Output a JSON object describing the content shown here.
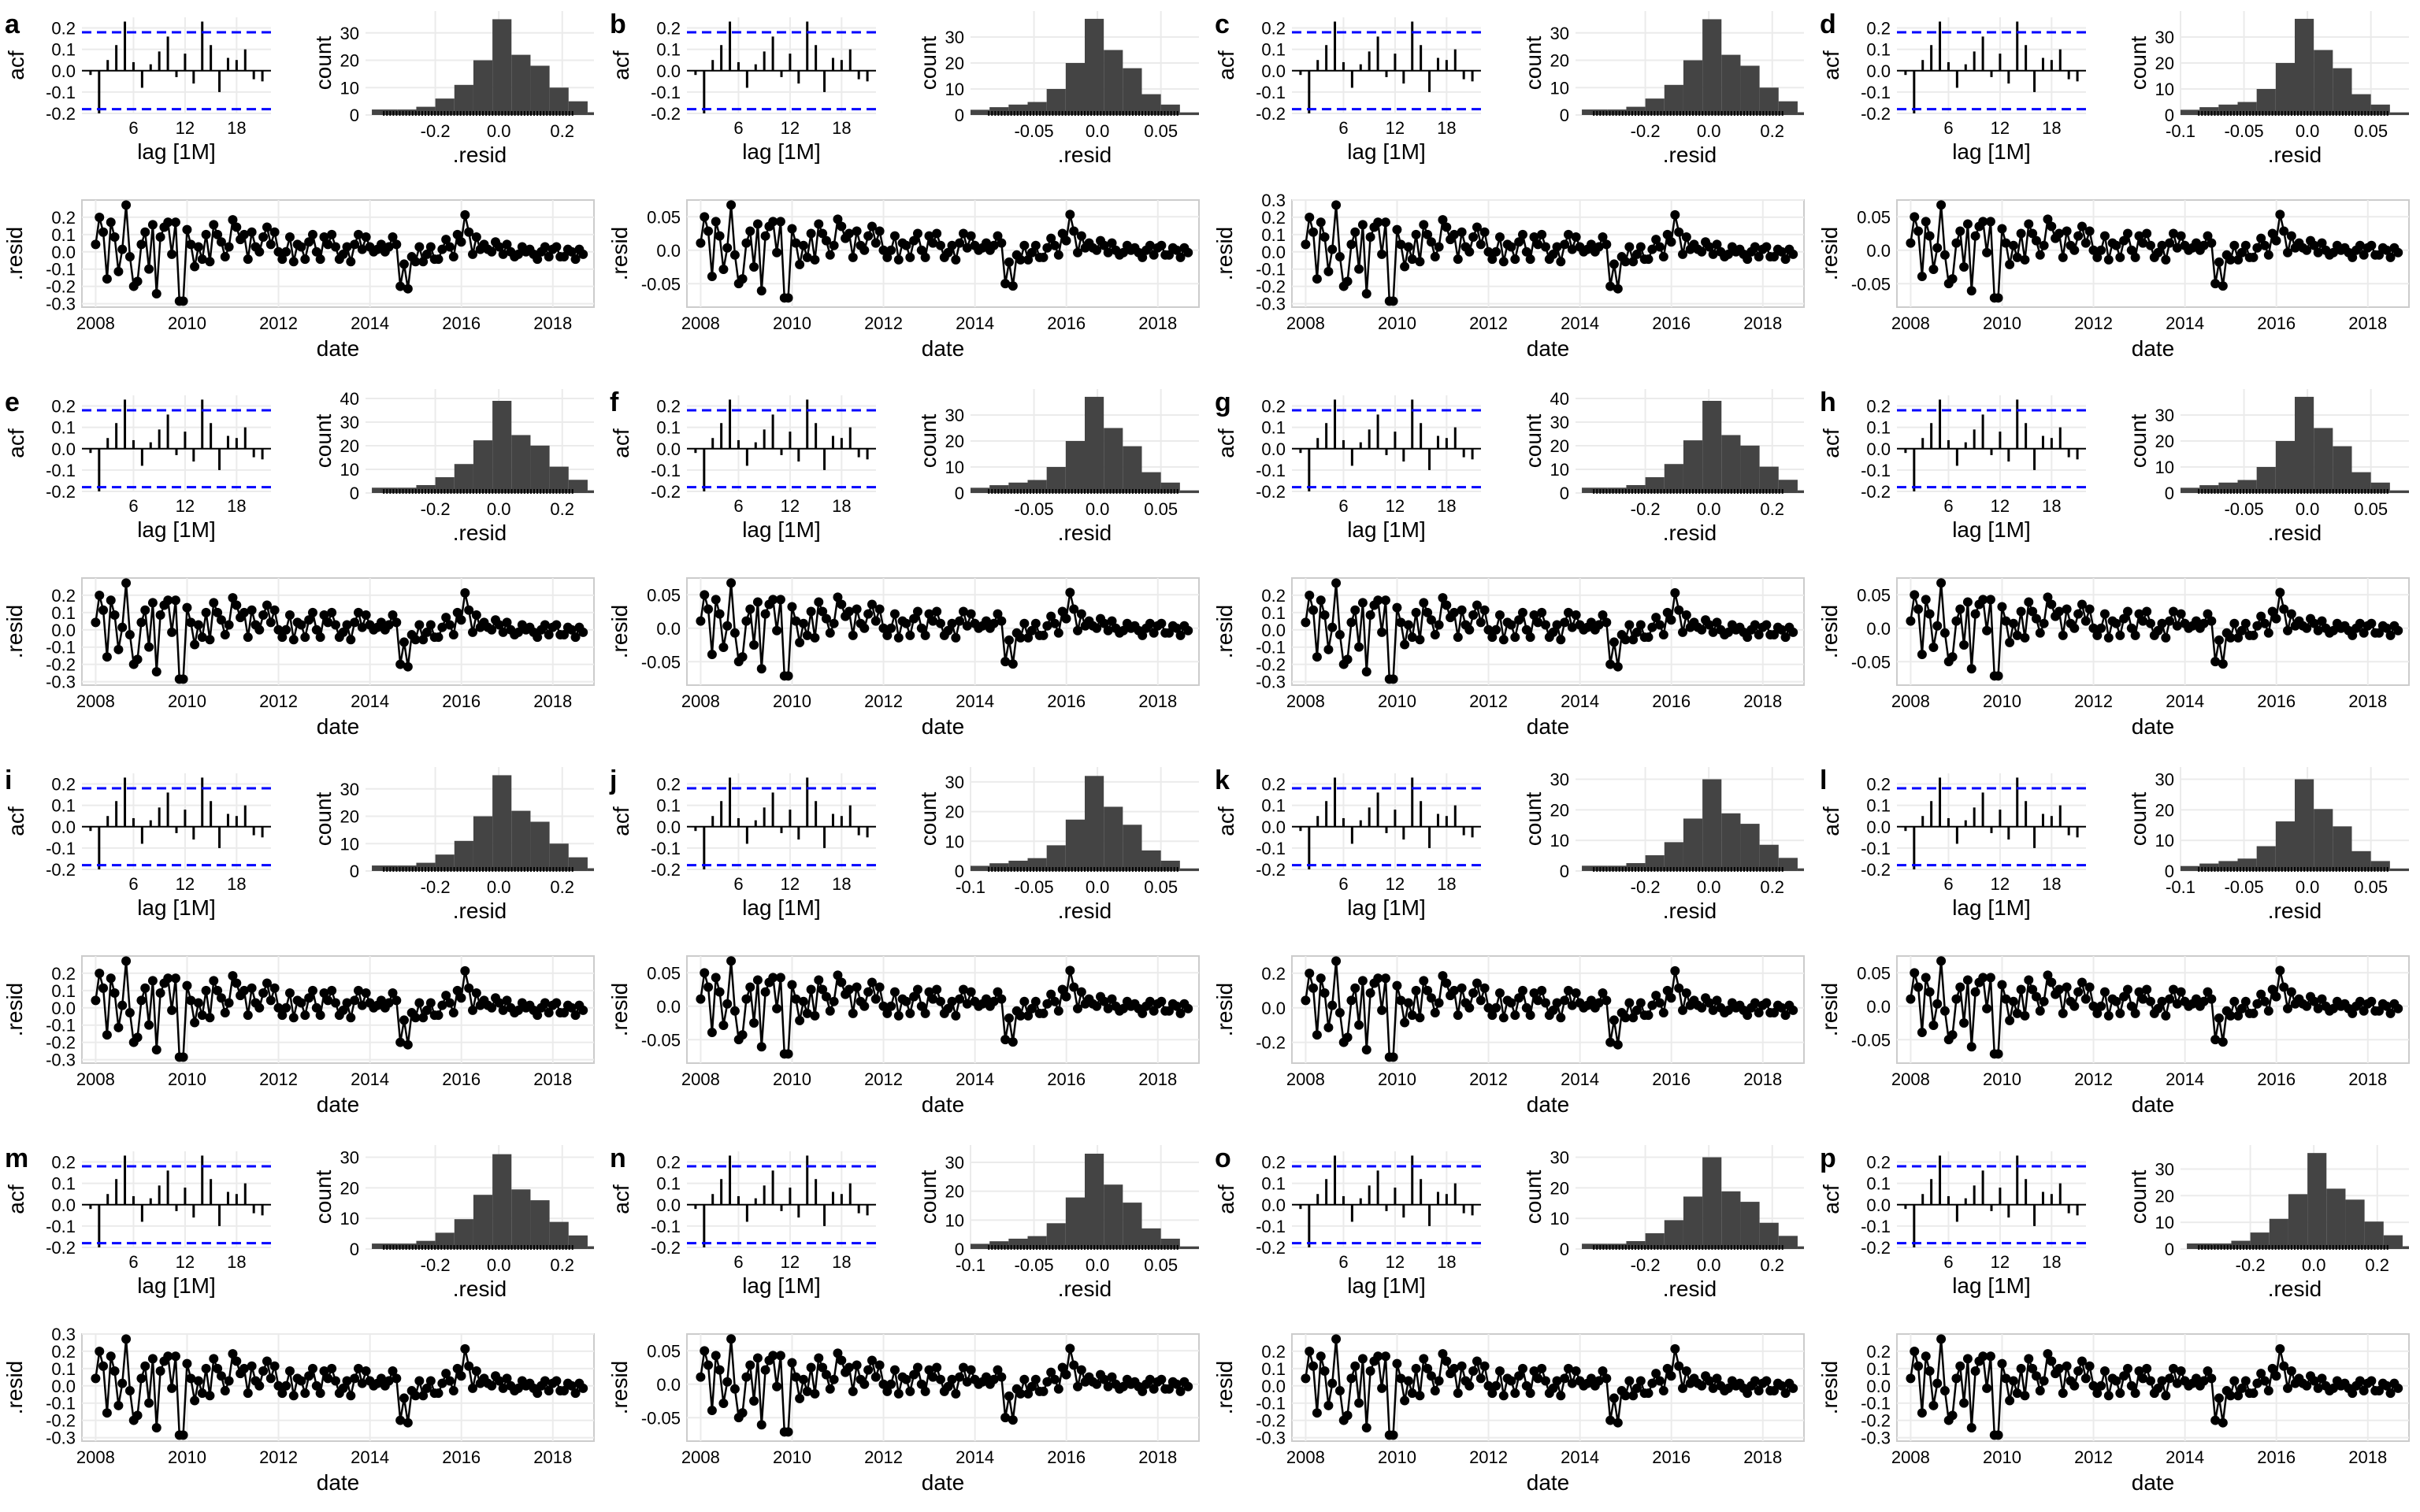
{
  "figure": {
    "panel_letters": [
      "a",
      "b",
      "c",
      "d",
      "e",
      "f",
      "g",
      "h",
      "i",
      "j",
      "k",
      "l",
      "m",
      "n",
      "o",
      "p"
    ],
    "acf_ylabel": "acf",
    "acf_xlabel": "lag [1M]",
    "hist_ylabel": "count",
    "hist_xlabel": ".resid",
    "ts_ylabel": ".resid",
    "ts_xlabel": "date",
    "acf_line_color": "#0000ff",
    "bar_color": "#444444",
    "point_color": "#000000",
    "grid_color": "#ebebeb"
  },
  "chart_data": {
    "type": "composite",
    "description_note": "",
    "acf": {
      "xlim": [
        0,
        22
      ],
      "ylim": [
        -0.2,
        0.25
      ],
      "xticks": [
        6,
        12,
        18
      ],
      "yticks": [
        -0.2,
        -0.1,
        0.0,
        0.1,
        0.2
      ],
      "conf_band": 0.18,
      "lags": [
        1,
        2,
        3,
        4,
        5,
        6,
        7,
        8,
        9,
        10,
        11,
        12,
        13,
        14,
        15,
        16,
        17,
        18,
        19,
        20,
        21
      ],
      "values": [
        -0.02,
        -0.2,
        0.05,
        0.12,
        0.23,
        0.04,
        -0.08,
        0.03,
        0.09,
        0.16,
        -0.03,
        0.08,
        -0.06,
        0.23,
        0.12,
        -0.1,
        0.06,
        0.05,
        0.1,
        -0.04,
        -0.05
      ]
    },
    "histogram_scales": {
      "large": {
        "xlim": [
          -0.42,
          0.3
        ],
        "xticks": [
          -0.2,
          0.0,
          0.2
        ],
        "bins": [
          -0.4,
          -0.32,
          -0.26,
          -0.2,
          -0.14,
          -0.08,
          -0.02,
          0.04,
          0.1,
          0.16,
          0.22,
          0.28
        ]
      },
      "small": {
        "xlim": [
          -0.1,
          0.08
        ],
        "xticks": [
          -0.05,
          0.0,
          0.05
        ],
        "bins": [
          -0.1,
          -0.085,
          -0.07,
          -0.055,
          -0.04,
          -0.025,
          -0.01,
          0.005,
          0.02,
          0.035,
          0.05,
          0.065,
          0.08
        ]
      }
    },
    "histogram_counts": {
      "large": [
        2,
        2,
        3,
        6,
        11,
        20,
        35,
        22,
        18,
        10,
        5,
        1
      ],
      "small": [
        2,
        3,
        4,
        5,
        10,
        20,
        37,
        25,
        18,
        8,
        4,
        1
      ]
    },
    "panels": [
      {
        "letter": "a",
        "scale": "large",
        "hist_ymax": 35,
        "hist_yticks": [
          0,
          10,
          20,
          30
        ],
        "ts_yticks": [
          -0.3,
          -0.2,
          -0.1,
          0.0,
          0.1,
          0.2
        ],
        "ts_ylim": [
          -0.32,
          0.3
        ]
      },
      {
        "letter": "b",
        "scale": "small",
        "hist_ymax": 37,
        "hist_yticks": [
          0,
          10,
          20,
          30
        ],
        "ts_yticks": [
          -0.05,
          0.0,
          0.05
        ],
        "ts_ylim": [
          -0.085,
          0.075
        ]
      },
      {
        "letter": "c",
        "scale": "large",
        "hist_ymax": 35,
        "hist_yticks": [
          0,
          10,
          20,
          30
        ],
        "ts_yticks": [
          -0.3,
          -0.2,
          -0.1,
          0.0,
          0.1,
          0.2,
          0.3
        ],
        "ts_ylim": [
          -0.32,
          0.3
        ]
      },
      {
        "letter": "d",
        "scale": "small",
        "hist_ymax": 37,
        "hist_yticks": [
          0,
          10,
          20,
          30
        ],
        "ts_yticks": [
          -0.05,
          0.0,
          0.05
        ],
        "ts_ylim": [
          -0.085,
          0.075
        ],
        "hist_xticks": [
          -0.1,
          -0.05,
          0.0,
          0.05
        ]
      },
      {
        "letter": "e",
        "scale": "large",
        "hist_ymax": 39,
        "hist_yticks": [
          0,
          10,
          20,
          30,
          40
        ],
        "ts_yticks": [
          -0.3,
          -0.2,
          -0.1,
          0.0,
          0.1,
          0.2
        ],
        "ts_ylim": [
          -0.32,
          0.3
        ]
      },
      {
        "letter": "f",
        "scale": "small",
        "hist_ymax": 37,
        "hist_yticks": [
          0,
          10,
          20,
          30
        ],
        "ts_yticks": [
          -0.05,
          0.0,
          0.05
        ],
        "ts_ylim": [
          -0.085,
          0.075
        ]
      },
      {
        "letter": "g",
        "scale": "large",
        "hist_ymax": 39,
        "hist_yticks": [
          0,
          10,
          20,
          30,
          40
        ],
        "ts_yticks": [
          -0.3,
          -0.2,
          -0.1,
          0.0,
          0.1,
          0.2
        ],
        "ts_ylim": [
          -0.32,
          0.3
        ]
      },
      {
        "letter": "h",
        "scale": "small",
        "hist_ymax": 37,
        "hist_yticks": [
          0,
          10,
          20,
          30
        ],
        "ts_yticks": [
          -0.05,
          0.0,
          0.05
        ],
        "ts_ylim": [
          -0.085,
          0.075
        ]
      },
      {
        "letter": "i",
        "scale": "large",
        "hist_ymax": 35,
        "hist_yticks": [
          0,
          10,
          20,
          30
        ],
        "ts_yticks": [
          -0.3,
          -0.2,
          -0.1,
          0.0,
          0.1,
          0.2
        ],
        "ts_ylim": [
          -0.32,
          0.3
        ]
      },
      {
        "letter": "j",
        "scale": "small",
        "hist_ymax": 32,
        "hist_yticks": [
          0,
          10,
          20,
          30
        ],
        "ts_yticks": [
          -0.05,
          0.0,
          0.05
        ],
        "ts_ylim": [
          -0.085,
          0.075
        ],
        "hist_xticks": [
          -0.1,
          -0.05,
          0.0,
          0.05
        ]
      },
      {
        "letter": "k",
        "scale": "large",
        "hist_ymax": 30,
        "hist_yticks": [
          0,
          10,
          20,
          30
        ],
        "ts_yticks": [
          -0.2,
          0.0,
          0.2
        ],
        "ts_ylim": [
          -0.32,
          0.3
        ]
      },
      {
        "letter": "l",
        "scale": "small",
        "hist_ymax": 30,
        "hist_yticks": [
          0,
          10,
          20,
          30
        ],
        "ts_yticks": [
          -0.05,
          0.0,
          0.05
        ],
        "ts_ylim": [
          -0.085,
          0.075
        ],
        "hist_xticks": [
          -0.1,
          -0.05,
          0.0,
          0.05
        ]
      },
      {
        "letter": "m",
        "scale": "large",
        "hist_ymax": 31,
        "hist_yticks": [
          0,
          10,
          20,
          30
        ],
        "ts_yticks": [
          -0.3,
          -0.2,
          -0.1,
          0.0,
          0.1,
          0.2,
          0.3
        ],
        "ts_ylim": [
          -0.32,
          0.3
        ]
      },
      {
        "letter": "n",
        "scale": "small",
        "hist_ymax": 33,
        "hist_yticks": [
          0,
          10,
          20,
          30
        ],
        "ts_yticks": [
          -0.05,
          0.0,
          0.05
        ],
        "ts_ylim": [
          -0.085,
          0.075
        ],
        "hist_xticks": [
          -0.1,
          -0.05,
          0.0,
          0.05
        ]
      },
      {
        "letter": "o",
        "scale": "large",
        "hist_ymax": 30,
        "hist_yticks": [
          0,
          10,
          20,
          30
        ],
        "ts_yticks": [
          -0.3,
          -0.2,
          -0.1,
          0.0,
          0.1,
          0.2
        ],
        "ts_ylim": [
          -0.32,
          0.3
        ]
      },
      {
        "letter": "p",
        "scale": "large",
        "hist_ymax": 36,
        "hist_yticks": [
          0,
          10,
          20,
          30
        ],
        "ts_yticks": [
          -0.3,
          -0.2,
          -0.1,
          0.0,
          0.1,
          0.2
        ],
        "ts_ylim": [
          -0.32,
          0.3
        ]
      }
    ],
    "timeseries": {
      "xlim": [
        2007.7,
        2018.9
      ],
      "xticks": [
        2008,
        2010,
        2012,
        2014,
        2016,
        2018
      ],
      "start": 2008.0,
      "step": 0.0833,
      "values_normalized": [
        0.15,
        0.7,
        0.4,
        -0.55,
        0.6,
        0.3,
        -0.4,
        0.05,
        0.95,
        -0.1,
        -0.7,
        -0.6,
        0.15,
        0.4,
        -0.35,
        0.55,
        -0.85,
        0.3,
        0.5,
        0.6,
        -0.05,
        0.6,
        -1.0,
        -1.0,
        0.45,
        0.15,
        -0.3,
        0.1,
        -0.15,
        0.35,
        -0.2,
        0.55,
        0.35,
        0.2,
        -0.1,
        0.1,
        0.65,
        0.5,
        0.25,
        0.35,
        -0.15,
        0.4,
        0.1,
        0.0,
        0.3,
        0.5,
        0.15,
        0.4,
        0.0,
        -0.15,
        0.0,
        0.3,
        -0.2,
        0.15,
        0.1,
        -0.15,
        0.2,
        0.35,
        0.0,
        -0.15,
        0.3,
        0.15,
        0.35,
        0.1,
        -0.15,
        -0.05,
        0.1,
        -0.2,
        0.15,
        0.35,
        0.05,
        0.3,
        0.1,
        0.0,
        0.05,
        0.15,
        0.0,
        0.1,
        0.3,
        0.15,
        -0.7,
        -0.25,
        -0.75,
        -0.1,
        -0.2,
        0.1,
        -0.2,
        -0.05,
        0.1,
        -0.15,
        -0.15,
        0.05,
        0.25,
        0.1,
        -0.1,
        0.35,
        0.2,
        0.75,
        0.4,
        -0.05,
        0.3,
        0.05,
        0.15,
        0.05,
        0.0,
        0.2,
        0.1,
        -0.05,
        0.15,
        0.0,
        -0.1,
        -0.05,
        0.1,
        0.0,
        0.05,
        -0.05,
        -0.15,
        0.0,
        0.1,
        -0.1,
        0.05,
        0.1,
        -0.1,
        -0.1,
        0.05,
        0.0,
        -0.15,
        0.05,
        -0.05
      ]
    }
  }
}
